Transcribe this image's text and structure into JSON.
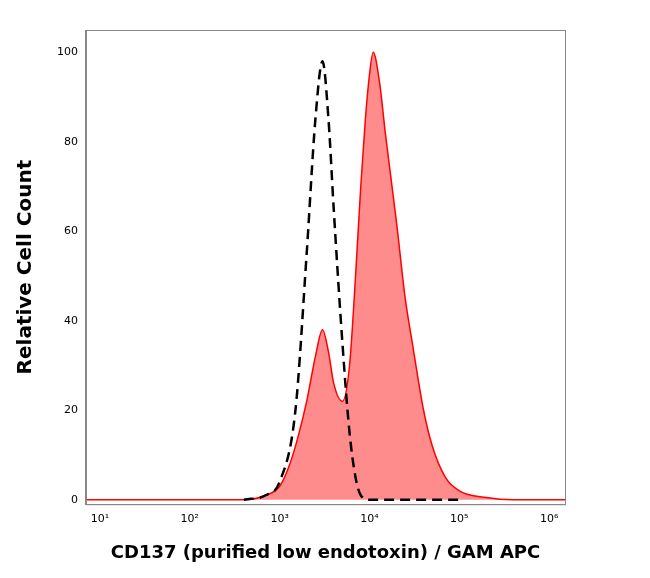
{
  "chart_data": {
    "type": "histogram",
    "x_label": "CD137 (purified low endotoxin) / GAM APC",
    "y_label": "Relative Cell Count",
    "log": "x",
    "grid": false,
    "xlim": [
      7,
      1500000
    ],
    "xticks": [
      {
        "value": 10,
        "label": "10¹"
      },
      {
        "value": 100,
        "label": "10²"
      },
      {
        "value": 1000,
        "label": "10³"
      },
      {
        "value": 10000,
        "label": "10⁴"
      },
      {
        "value": 100000,
        "label": "10⁵"
      },
      {
        "value": 1000000,
        "label": "10⁶"
      }
    ],
    "ylim": [
      -1,
      105
    ],
    "yticks": [
      0,
      20,
      40,
      60,
      80,
      100
    ],
    "series": [
      {
        "type": "area",
        "color": "#ff0000",
        "line_style": "solid",
        "x": [
          7,
          100,
          400,
          700,
          1000,
          1300,
          1600,
          2000,
          2500,
          3000,
          3500,
          4000,
          5000,
          6000,
          7000,
          8000,
          9000,
          10000,
          11000,
          13000,
          15000,
          20000,
          25000,
          30000,
          40000,
          50000,
          70000,
          100000,
          200000,
          400000,
          1500000
        ],
        "values": [
          0,
          0,
          0,
          1,
          3,
          8,
          14,
          22,
          32,
          38,
          33,
          26,
          22,
          30,
          50,
          70,
          85,
          95,
          100,
          93,
          82,
          62,
          45,
          35,
          20,
          12,
          5,
          2,
          0.5,
          0,
          0
        ]
      },
      {
        "type": "line",
        "color": "#000000",
        "line_style": "dashed",
        "x": [
          400,
          700,
          1000,
          1500,
          2000,
          2500,
          3000,
          3500,
          4000,
          5000,
          6000,
          7000,
          8000,
          10000,
          20000,
          100000
        ],
        "values": [
          0,
          1,
          4,
          20,
          55,
          85,
          98,
          85,
          65,
          35,
          15,
          5,
          1,
          0,
          0,
          0
        ]
      }
    ]
  }
}
